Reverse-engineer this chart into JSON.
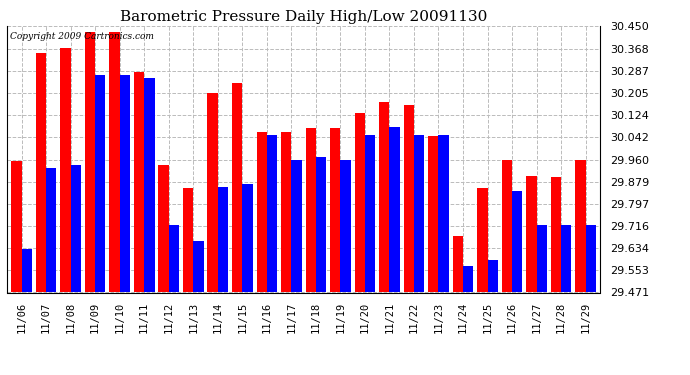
{
  "title": "Barometric Pressure Daily High/Low 20091130",
  "copyright": "Copyright 2009 Cartronics.com",
  "ylim": [
    29.471,
    30.45
  ],
  "yticks": [
    29.471,
    29.553,
    29.634,
    29.716,
    29.797,
    29.879,
    29.96,
    30.042,
    30.124,
    30.205,
    30.287,
    30.368,
    30.45
  ],
  "dates": [
    "11/06",
    "11/07",
    "11/08",
    "11/09",
    "11/10",
    "11/11",
    "11/12",
    "11/13",
    "11/14",
    "11/15",
    "11/16",
    "11/17",
    "11/18",
    "11/19",
    "11/20",
    "11/21",
    "11/22",
    "11/23",
    "11/24",
    "11/25",
    "11/26",
    "11/27",
    "11/28",
    "11/29"
  ],
  "highs": [
    29.955,
    30.35,
    30.37,
    30.43,
    30.43,
    30.28,
    29.94,
    29.855,
    30.205,
    30.24,
    30.06,
    30.06,
    30.075,
    30.075,
    30.13,
    30.17,
    30.16,
    30.045,
    29.68,
    29.855,
    29.96,
    29.9,
    29.895,
    29.96
  ],
  "lows": [
    29.63,
    29.93,
    29.94,
    30.27,
    30.27,
    30.26,
    29.72,
    29.66,
    29.86,
    29.87,
    30.05,
    29.96,
    29.97,
    29.96,
    30.05,
    30.08,
    30.05,
    30.05,
    29.57,
    29.59,
    29.845,
    29.72,
    29.72,
    29.72
  ],
  "high_color": "#ff0000",
  "low_color": "#0000ff",
  "bg_color": "#ffffff",
  "grid_color": "#bbbbbb",
  "title_fontsize": 11,
  "bar_width": 0.42,
  "fig_width": 6.9,
  "fig_height": 3.75,
  "dpi": 100
}
